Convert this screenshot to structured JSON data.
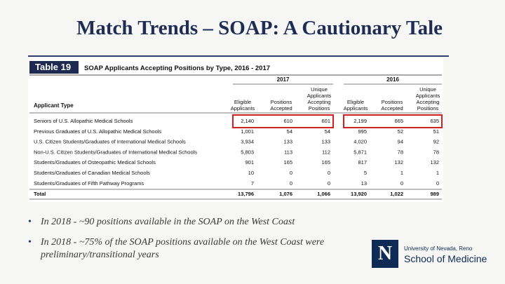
{
  "title": "Match Trends – SOAP: A Cautionary Tale",
  "table": {
    "label": "Table 19",
    "caption": "SOAP Applicants Accepting Positions by Type, 2016 - 2017",
    "years": [
      "2017",
      "2016"
    ],
    "row_header": "Applicant Type",
    "column_headers": [
      "Eligible Applicants",
      "Positions Accepted",
      "Unique Applicants Accepting Positions",
      "Eligible Applicants",
      "Positions Accepted",
      "Unique Applicants Accepting Positions"
    ],
    "rows": [
      [
        "Seniors of U.S. Allopathic Medical Schools",
        "2,140",
        "610",
        "601",
        "2,199",
        "665",
        "635"
      ],
      [
        "Previous Graduates of U.S. Allopathic Medical Schools",
        "1,001",
        "54",
        "54",
        "995",
        "52",
        "51"
      ],
      [
        "U.S. Citizen Students/Graduates of International Medical Schools",
        "3,934",
        "133",
        "133",
        "4,020",
        "94",
        "92"
      ],
      [
        "Non-U.S. Citizen Students/Graduates of International Medical Schools",
        "5,803",
        "113",
        "112",
        "5,871",
        "78",
        "78"
      ],
      [
        "Students/Graduates of Osteopathic Medical Schools",
        "901",
        "165",
        "165",
        "817",
        "132",
        "132"
      ],
      [
        "Students/Graduates of Canadian Medical Schools",
        "10",
        "0",
        "0",
        "5",
        "1",
        "1"
      ],
      [
        "Students/Graduates of Fifth Pathway Programs",
        "7",
        "0",
        "0",
        "13",
        "0",
        "0"
      ],
      [
        "Total",
        "13,796",
        "1,076",
        "1,066",
        "13,920",
        "1,022",
        "989"
      ]
    ]
  },
  "bullets": [
    "In 2018 - ~90 positions available in the SOAP on the West Coast",
    "In 2018 - ~75% of the SOAP positions available on the West Coast were preliminary/transitional years"
  ],
  "logo": {
    "mark": "N",
    "university": "University of Nevada, Reno",
    "school": "School of Medicine"
  }
}
